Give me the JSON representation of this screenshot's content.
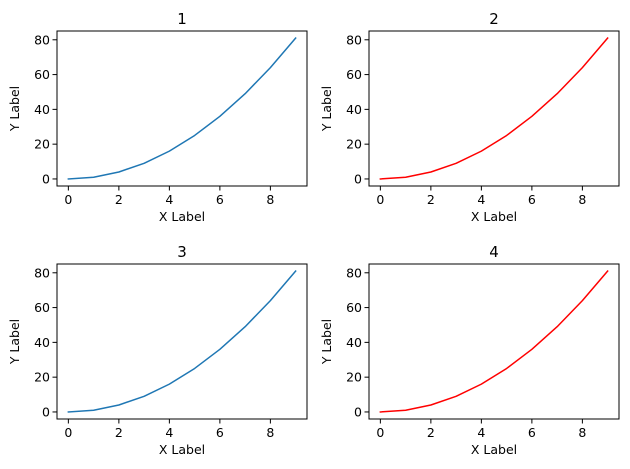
{
  "chart_data": [
    {
      "type": "line",
      "title": "1",
      "xlabel": "X Label",
      "ylabel": "Y Label",
      "x": [
        0,
        1,
        2,
        3,
        4,
        5,
        6,
        7,
        8,
        9
      ],
      "series": [
        {
          "values": [
            0,
            1,
            4,
            9,
            16,
            25,
            36,
            49,
            64,
            81
          ],
          "color": "#1f77b4"
        }
      ],
      "xlim": [
        -0.45,
        9.45
      ],
      "ylim": [
        -4.05,
        85.05
      ],
      "xticks": [
        0,
        2,
        4,
        6,
        8
      ],
      "yticks": [
        0,
        20,
        40,
        60,
        80
      ],
      "grid": false
    },
    {
      "type": "line",
      "title": "2",
      "xlabel": "X Label",
      "ylabel": "Y Label",
      "x": [
        0,
        1,
        2,
        3,
        4,
        5,
        6,
        7,
        8,
        9
      ],
      "series": [
        {
          "values": [
            0,
            1,
            4,
            9,
            16,
            25,
            36,
            49,
            64,
            81
          ],
          "color": "#ff0000"
        }
      ],
      "xlim": [
        -0.45,
        9.45
      ],
      "ylim": [
        -4.05,
        85.05
      ],
      "xticks": [
        0,
        2,
        4,
        6,
        8
      ],
      "yticks": [
        0,
        20,
        40,
        60,
        80
      ],
      "grid": false
    },
    {
      "type": "line",
      "title": "3",
      "xlabel": "X Label",
      "ylabel": "Y Label",
      "x": [
        0,
        1,
        2,
        3,
        4,
        5,
        6,
        7,
        8,
        9
      ],
      "series": [
        {
          "values": [
            0,
            1,
            4,
            9,
            16,
            25,
            36,
            49,
            64,
            81
          ],
          "color": "#1f77b4"
        }
      ],
      "xlim": [
        -0.45,
        9.45
      ],
      "ylim": [
        -4.05,
        85.05
      ],
      "xticks": [
        0,
        2,
        4,
        6,
        8
      ],
      "yticks": [
        0,
        20,
        40,
        60,
        80
      ],
      "grid": false
    },
    {
      "type": "line",
      "title": "4",
      "xlabel": "X Label",
      "ylabel": "Y Label",
      "x": [
        0,
        1,
        2,
        3,
        4,
        5,
        6,
        7,
        8,
        9
      ],
      "series": [
        {
          "values": [
            0,
            1,
            4,
            9,
            16,
            25,
            36,
            49,
            64,
            81
          ],
          "color": "#ff0000"
        }
      ],
      "xlim": [
        -0.45,
        9.45
      ],
      "ylim": [
        -4.05,
        85.05
      ],
      "xticks": [
        0,
        2,
        4,
        6,
        8
      ],
      "yticks": [
        0,
        20,
        40,
        60,
        80
      ],
      "grid": false
    }
  ]
}
